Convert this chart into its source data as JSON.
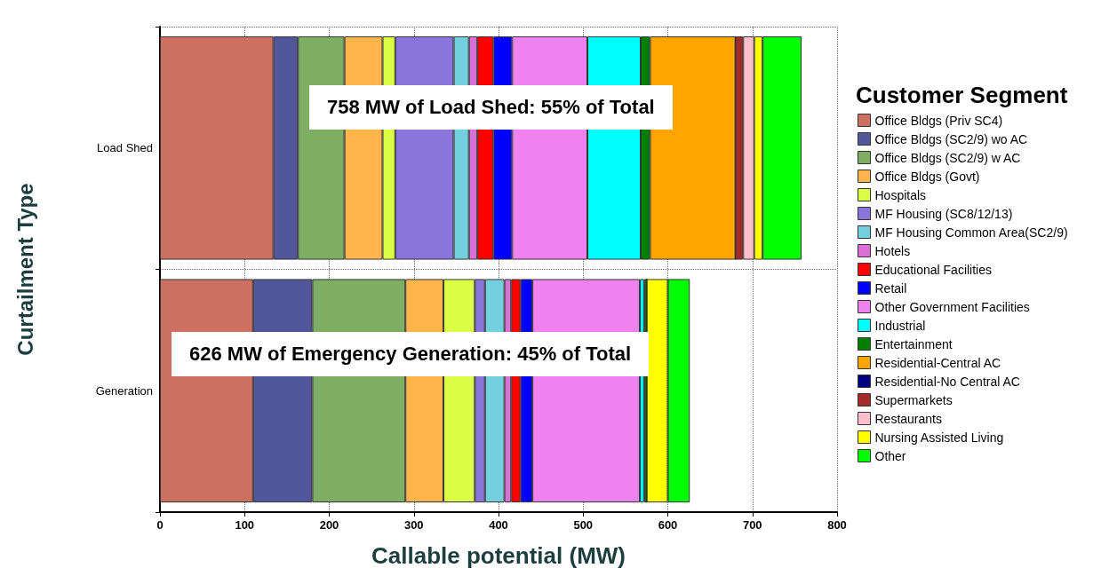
{
  "chart_data": {
    "type": "bar",
    "orientation": "horizontal",
    "stacked": true,
    "xlabel": "Callable potential (MW)",
    "ylabel": "Curtailment Type",
    "legend_title": "Customer Segment",
    "categories": [
      "Load Shed",
      "Generation"
    ],
    "xlim": [
      0,
      800
    ],
    "xticks": [
      0,
      100,
      200,
      300,
      400,
      500,
      600,
      700,
      800
    ],
    "grid": true,
    "legend": "right",
    "annotations": [
      "758 MW of Load Shed: 55% of Total",
      "626 MW of Emergency Generation: 45% of Total"
    ],
    "series": [
      {
        "name": "Office Bldgs (Priv SC4)",
        "color": "#cd7062",
        "values": [
          134,
          110
        ]
      },
      {
        "name": "Office Bldgs (SC2/9) wo AC",
        "color": "#52569b",
        "values": [
          29,
          70
        ]
      },
      {
        "name": "Office Bldgs (SC2/9) w AC",
        "color": "#7eae64",
        "values": [
          55,
          110
        ]
      },
      {
        "name": "Office Bldgs (Govt)",
        "color": "#ffb44c",
        "values": [
          45,
          45
        ]
      },
      {
        "name": "Hospitals",
        "color": "#dcff46",
        "values": [
          15,
          37
        ]
      },
      {
        "name": "MF Housing (SC8/12/13)",
        "color": "#8a75dd",
        "values": [
          69,
          12
        ]
      },
      {
        "name": "MF Housing Common Area(SC2/9)",
        "color": "#71d0dc",
        "values": [
          18,
          23
        ]
      },
      {
        "name": "Hotels",
        "color": "#da6fd7",
        "values": [
          10,
          8
        ]
      },
      {
        "name": "Educational Facilities",
        "color": "#ff0000",
        "values": [
          19,
          11
        ]
      },
      {
        "name": "Retail",
        "color": "#0000ff",
        "values": [
          22,
          14
        ]
      },
      {
        "name": "Other Government Facilities",
        "color": "#ee82ee",
        "values": [
          89,
          127
        ]
      },
      {
        "name": "Industrial",
        "color": "#00ffff",
        "values": [
          63,
          5
        ]
      },
      {
        "name": "Entertainment",
        "color": "#008000",
        "values": [
          11,
          3
        ]
      },
      {
        "name": "Residential-Central AC",
        "color": "#ffa500",
        "values": [
          101,
          0
        ]
      },
      {
        "name": "Residential-No Central AC",
        "color": "#000080",
        "values": [
          0,
          0
        ]
      },
      {
        "name": "Supermarkets",
        "color": "#a52a2a",
        "values": [
          9,
          0
        ]
      },
      {
        "name": "Restaurants",
        "color": "#ffc0cb",
        "values": [
          13,
          0
        ]
      },
      {
        "name": "Nursing Assisted Living",
        "color": "#ffff00",
        "values": [
          10,
          25
        ]
      },
      {
        "name": "Other",
        "color": "#00ff00",
        "values": [
          46,
          26
        ]
      }
    ]
  }
}
